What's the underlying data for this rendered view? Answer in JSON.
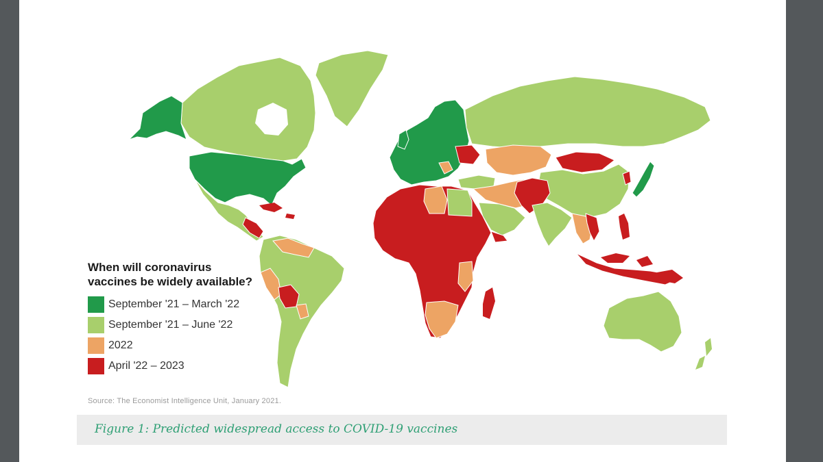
{
  "legend": {
    "title": "When will coronavirus\nvaccines be widely available?",
    "items": [
      {
        "label": "September '21 – March '22",
        "color": "#219a4a"
      },
      {
        "label": "September '21 – June '22",
        "color": "#a8cf6c"
      },
      {
        "label": "2022",
        "color": "#eda464"
      },
      {
        "label": "April '22 – 2023",
        "color": "#c81d1f"
      }
    ]
  },
  "source": "Source: The Economist Intelligence Unit, January 2021.",
  "caption": "Figure 1: Predicted widespread access to COVID-19 vaccines",
  "colors": {
    "viewer_background": "#54585b",
    "page_background": "#ffffff",
    "caption_background": "#ececec",
    "caption_text": "#2e9f74"
  }
}
